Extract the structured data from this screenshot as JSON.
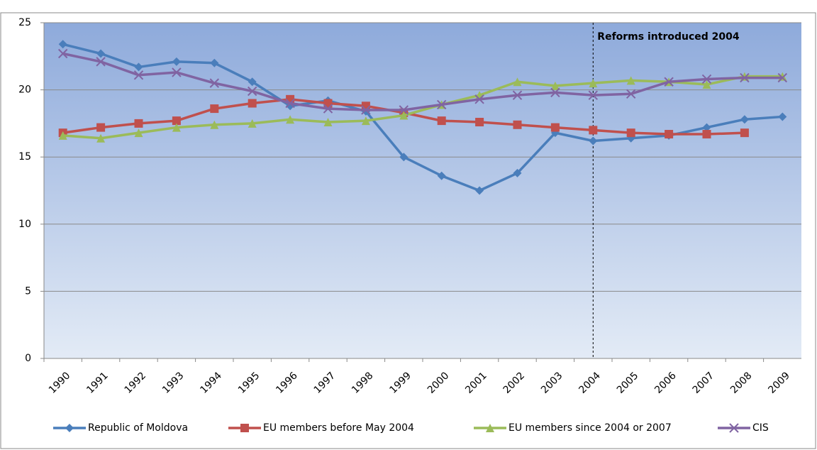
{
  "chart_data": {
    "type": "line",
    "categories": [
      "1990",
      "1991",
      "1992",
      "1993",
      "1994",
      "1995",
      "1996",
      "1997",
      "1998",
      "1999",
      "2000",
      "2001",
      "2002",
      "2003",
      "2004",
      "2005",
      "2006",
      "2007",
      "2008",
      "2009"
    ],
    "series": [
      {
        "name": "Republic of Moldova",
        "color": "#4a7ebb",
        "marker": "diamond",
        "values": [
          23.4,
          22.7,
          21.7,
          22.1,
          22.0,
          20.6,
          18.8,
          19.2,
          18.4,
          15.0,
          13.6,
          12.5,
          13.8,
          16.8,
          16.2,
          16.4,
          16.6,
          17.2,
          17.8,
          18.0
        ]
      },
      {
        "name": "EU members before May 2004",
        "color": "#c0504d",
        "marker": "square",
        "values": [
          16.8,
          17.2,
          17.5,
          17.7,
          18.6,
          19.0,
          19.3,
          19.0,
          18.8,
          18.3,
          17.7,
          17.6,
          17.4,
          17.2,
          17.0,
          16.8,
          16.7,
          16.7,
          16.8,
          null
        ]
      },
      {
        "name": "EU members since 2004 or 2007",
        "color": "#9bbb59",
        "marker": "triangle",
        "values": [
          16.6,
          16.4,
          16.8,
          17.2,
          17.4,
          17.5,
          17.8,
          17.6,
          17.7,
          18.1,
          18.9,
          19.6,
          20.6,
          20.3,
          20.5,
          20.7,
          20.6,
          20.4,
          21.0,
          21.0
        ]
      },
      {
        "name": "CIS",
        "color": "#8064a2",
        "marker": "x",
        "values": [
          22.7,
          22.1,
          21.1,
          21.3,
          20.5,
          19.9,
          19.0,
          18.6,
          18.5,
          18.5,
          18.9,
          19.3,
          19.6,
          19.8,
          19.6,
          19.7,
          20.6,
          20.8,
          20.9,
          20.9
        ]
      }
    ],
    "ylim": [
      0,
      25
    ],
    "yticks": [
      0,
      5,
      10,
      15,
      20,
      25
    ],
    "grid": true,
    "legend": "bottom",
    "annotation": {
      "text": "Reforms introduced 2004",
      "category": "2004"
    }
  }
}
